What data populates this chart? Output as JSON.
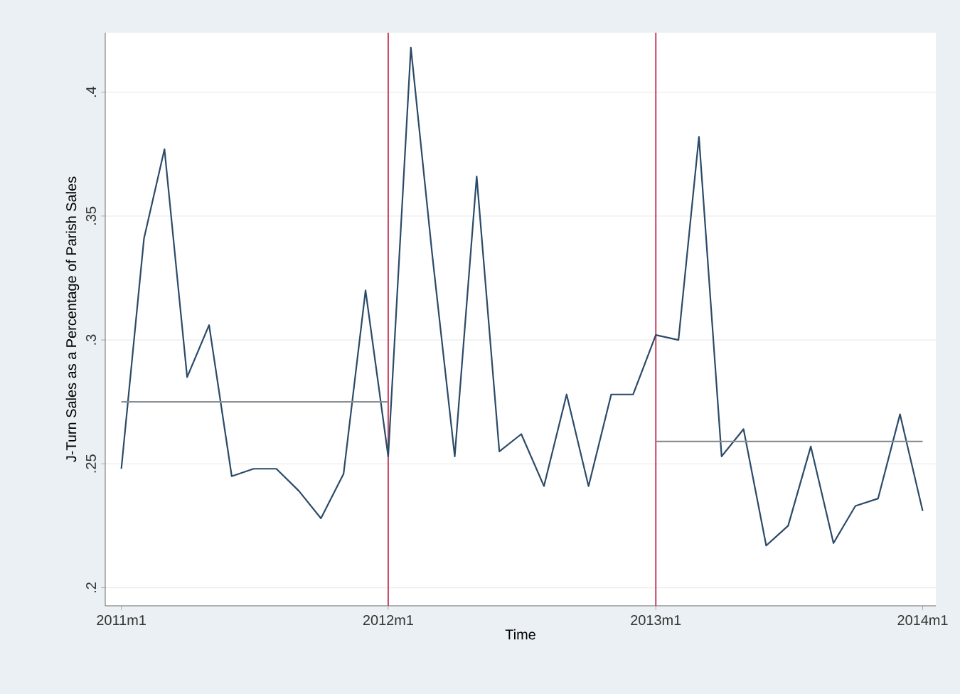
{
  "chart_data": {
    "type": "line",
    "xlabel": "Time",
    "ylabel": "J-Turn Sales as a Percentage of Parish Sales",
    "xlim": [
      "2010-12-10",
      "2014-01-19"
    ],
    "ylim": [
      0.1927,
      0.424
    ],
    "xticks": [
      {
        "value": "2011-01",
        "label": "2011m1"
      },
      {
        "value": "2012-01",
        "label": "2012m1"
      },
      {
        "value": "2013-01",
        "label": "2013m1"
      },
      {
        "value": "2014-01",
        "label": "2014m1"
      }
    ],
    "yticks": [
      {
        "value": 0.2,
        "label": ".2"
      },
      {
        "value": 0.25,
        "label": ".25"
      },
      {
        "value": 0.3,
        "label": ".3"
      },
      {
        "value": 0.35,
        "label": ".35"
      },
      {
        "value": 0.4,
        "label": ".4"
      }
    ],
    "grid": "y",
    "series": [
      {
        "color": "#2b4a68",
        "x": [
          "2011-01",
          "2011-02",
          "2011-03",
          "2011-04",
          "2011-05",
          "2011-06",
          "2011-07",
          "2011-08",
          "2011-09",
          "2011-10",
          "2011-11",
          "2011-12",
          "2012-01",
          "2012-02",
          "2012-03",
          "2012-04",
          "2012-05",
          "2012-06",
          "2012-07",
          "2012-08",
          "2012-09",
          "2012-10",
          "2012-11",
          "2012-12",
          "2013-01",
          "2013-02",
          "2013-03",
          "2013-04",
          "2013-05",
          "2013-06",
          "2013-07",
          "2013-08",
          "2013-09",
          "2013-10",
          "2013-11",
          "2013-12",
          "2014-01"
        ],
        "values": [
          0.248,
          0.341,
          0.377,
          0.285,
          0.306,
          0.245,
          0.248,
          0.248,
          0.239,
          0.228,
          0.246,
          0.32,
          0.253,
          0.418,
          0.335,
          0.253,
          0.366,
          0.255,
          0.262,
          0.241,
          0.278,
          0.241,
          0.278,
          0.278,
          0.302,
          0.3,
          0.382,
          0.253,
          0.264,
          0.217,
          0.225,
          0.257,
          0.218,
          0.233,
          0.236,
          0.27,
          0.231
        ]
      },
      {
        "type": "line",
        "color": "#8a8f94",
        "x": [
          "2011-01",
          "2012-01"
        ],
        "values": [
          0.275,
          0.275
        ]
      },
      {
        "type": "line",
        "color": "#8a8f94",
        "x": [
          "2013-01",
          "2014-01"
        ],
        "values": [
          0.259,
          0.259
        ]
      }
    ],
    "ref_lines": [
      {
        "axis": "x",
        "value": "2012-01",
        "color": "#c8405f"
      },
      {
        "axis": "x",
        "value": "2013-01",
        "color": "#c8405f"
      }
    ]
  }
}
